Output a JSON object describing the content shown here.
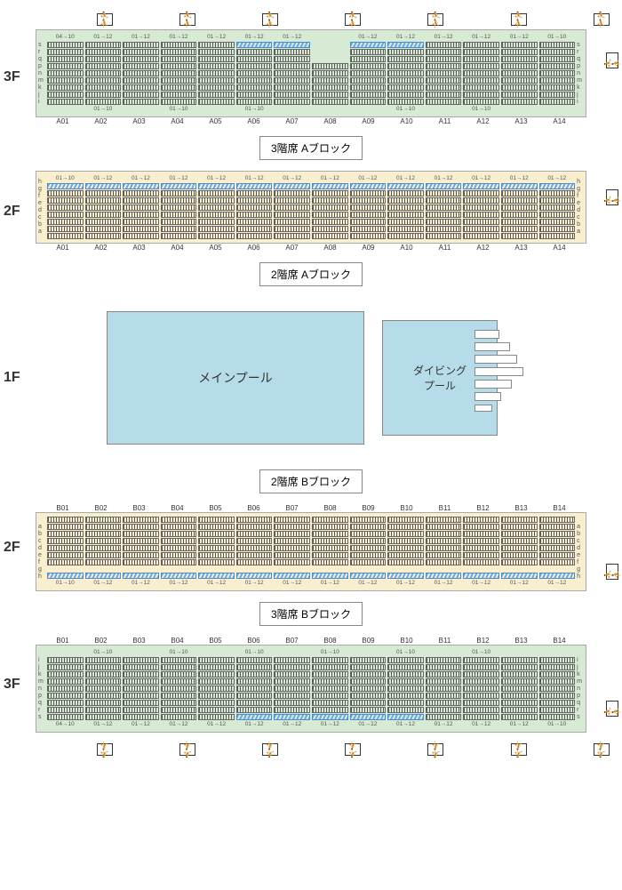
{
  "floors": {
    "f3": "3F",
    "f2": "2F",
    "f1": "1F"
  },
  "titles": {
    "a3f": "3階席  Aブロック",
    "a2f": "2階席  Aブロック",
    "b2f": "2階席  Bブロック",
    "b3f": "3階席  Bブロック"
  },
  "pools": {
    "main": "メインプール",
    "diving": "ダイビング\nプール"
  },
  "block3fA": {
    "bg_color": "#d7ead3",
    "rowlabels": [
      "s",
      "r",
      "q",
      "p",
      "n",
      "m",
      "k",
      "j",
      "i"
    ],
    "cols": [
      "A01",
      "A02",
      "A03",
      "A04",
      "A05",
      "A06",
      "A07",
      "A08",
      "A09",
      "A10",
      "A11",
      "A12",
      "A13",
      "A14"
    ],
    "top_ranges": [
      "04→10",
      "01→12",
      "01→12",
      "01→12",
      "01→12",
      "01→12",
      "01→12",
      "",
      "01→12",
      "01→12",
      "01→12",
      "01→12",
      "01→12",
      "01→10"
    ],
    "bottom_ranges": [
      "",
      "01→10",
      "",
      "01→10",
      "",
      "01→10",
      "",
      "",
      "",
      "01→10",
      "",
      "01→10",
      "",
      ""
    ],
    "blue_cols": [
      5,
      6,
      8,
      9
    ],
    "notch_after": [
      1,
      3,
      5,
      8,
      10,
      12
    ],
    "rows": 9,
    "stairs_positions": [
      1,
      3,
      5,
      7,
      9,
      11,
      13
    ]
  },
  "block2fA": {
    "bg_color": "#f9efcf",
    "rowlabels": [
      "h",
      "g",
      "f",
      "e",
      "d",
      "c",
      "b",
      "a"
    ],
    "cols": [
      "A01",
      "A02",
      "A03",
      "A04",
      "A05",
      "A06",
      "A07",
      "A08",
      "A09",
      "A10",
      "A11",
      "A12",
      "A13",
      "A14"
    ],
    "top_ranges": [
      "01→10",
      "01→12",
      "01→12",
      "01→12",
      "01→12",
      "01→12",
      "01→12",
      "01→12",
      "01→12",
      "01→12",
      "01→12",
      "01→12",
      "01→12",
      "01→12"
    ],
    "blue_row": 0,
    "rows": 8
  },
  "block2fB": {
    "bg_color": "#f9efcf",
    "rowlabels": [
      "a",
      "b",
      "c",
      "d",
      "e",
      "f",
      "g",
      "h"
    ],
    "cols": [
      "B01",
      "B02",
      "B03",
      "B04",
      "B05",
      "B06",
      "B07",
      "B08",
      "B09",
      "B10",
      "B11",
      "B12",
      "B13",
      "B14"
    ],
    "bottom_ranges": [
      "01→10",
      "01→12",
      "01→12",
      "01→12",
      "01→12",
      "01→12",
      "01→12",
      "01→12",
      "01→12",
      "01→12",
      "01→12",
      "01→12",
      "01→12",
      "01→12"
    ],
    "blue_row": 7,
    "gap_before_row": 7,
    "rows": 8
  },
  "block3fB": {
    "bg_color": "#d7ead3",
    "rowlabels": [
      "i",
      "j",
      "k",
      "m",
      "n",
      "p",
      "q",
      "r",
      "s"
    ],
    "cols": [
      "B01",
      "B02",
      "B03",
      "B04",
      "B05",
      "B06",
      "B07",
      "B08",
      "B09",
      "B10",
      "B11",
      "B12",
      "B13",
      "B14"
    ],
    "top_ranges": [
      "",
      "01→10",
      "",
      "01→10",
      "",
      "01→10",
      "",
      "01→10",
      "",
      "01→10",
      "",
      "01→10",
      "",
      ""
    ],
    "bottom_ranges": [
      "04→10",
      "01→12",
      "01→12",
      "01→12",
      "01→12",
      "01→12",
      "01→12",
      "01→12",
      "01→12",
      "01→12",
      "01→12",
      "01→12",
      "01→12",
      "01→10"
    ],
    "blue_cols": [
      5,
      6,
      7,
      8,
      9
    ],
    "notch_after": [
      1,
      3,
      5,
      7,
      9,
      11,
      12
    ],
    "rows": 9,
    "stairs_positions": [
      1,
      3,
      5,
      7,
      9,
      11,
      13
    ]
  },
  "colors": {
    "block3f_bg": "#d7ead3",
    "block2f_bg": "#f9efcf",
    "pool_bg": "#b6dce9",
    "seat_normal": "#555555",
    "seat_blue": "#6aa8e8",
    "border": "#888888"
  }
}
